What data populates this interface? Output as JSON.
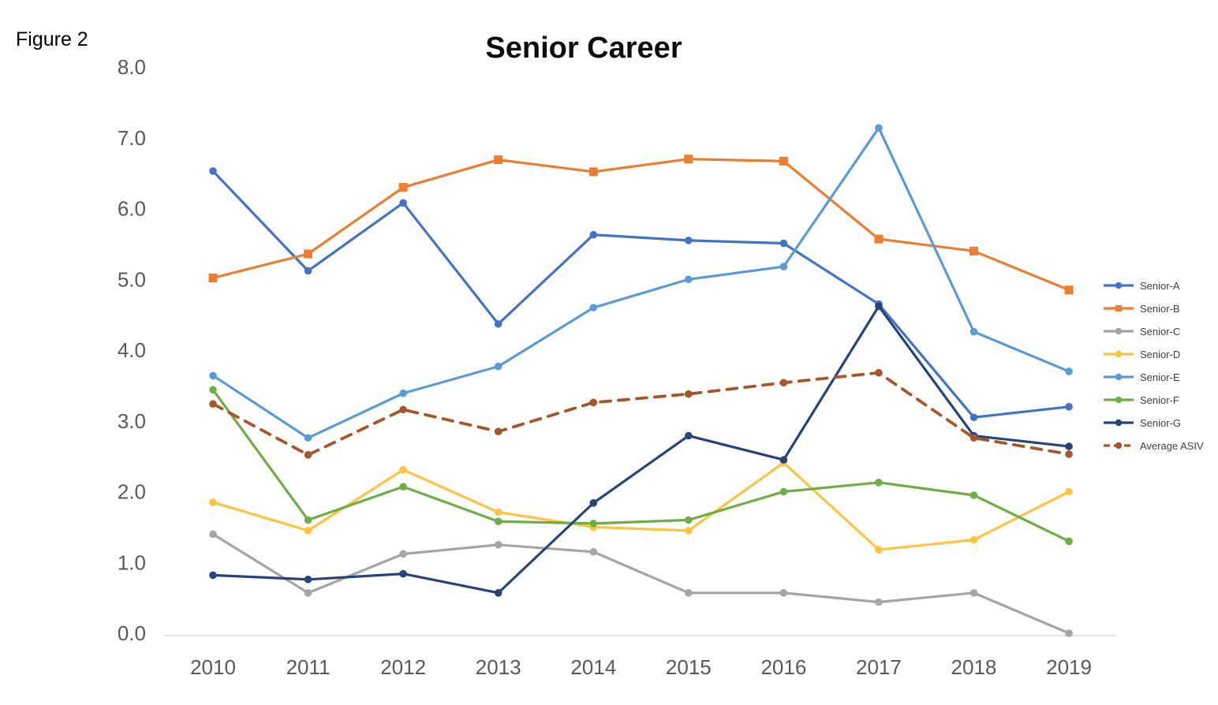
{
  "chart_data": {
    "type": "line",
    "figure_label": "Figure 2",
    "title": "Senior Career",
    "x": [
      2010,
      2011,
      2012,
      2013,
      2014,
      2015,
      2016,
      2017,
      2018,
      2019
    ],
    "xlabel": "",
    "ylabel": "",
    "ylim": [
      0.0,
      8.0
    ],
    "yticks": [
      "0.0",
      "1.0",
      "2.0",
      "3.0",
      "4.0",
      "5.0",
      "6.0",
      "7.0",
      "8.0"
    ],
    "grid": false,
    "legend_position": "right",
    "axis_line_color": "#D9D9D9",
    "tick_label_color": "#595959",
    "series": [
      {
        "name": "Senior-A",
        "color": "#4472C4",
        "marker": "circle",
        "line_style": "solid",
        "values": [
          6.53,
          5.12,
          6.08,
          4.37,
          5.63,
          5.55,
          5.51,
          4.65,
          3.05,
          3.2
        ]
      },
      {
        "name": "Senior-B",
        "color": "#ED7D31",
        "marker": "square",
        "line_style": "solid",
        "values": [
          5.02,
          5.36,
          6.3,
          6.69,
          6.52,
          6.7,
          6.67,
          5.57,
          5.4,
          4.85
        ]
      },
      {
        "name": "Senior-C",
        "color": "#A5A5A5",
        "marker": "circle",
        "line_style": "solid",
        "values": [
          1.4,
          0.57,
          1.12,
          1.25,
          1.15,
          0.57,
          0.57,
          0.44,
          0.57,
          0.0
        ]
      },
      {
        "name": "Senior-D",
        "color": "#FDC440",
        "marker": "circle",
        "line_style": "solid",
        "values": [
          1.85,
          1.45,
          2.31,
          1.71,
          1.5,
          1.45,
          2.41,
          1.18,
          1.32,
          2.0
        ]
      },
      {
        "name": "Senior-E",
        "color": "#5B9BD5",
        "marker": "circle",
        "line_style": "solid",
        "values": [
          3.64,
          2.76,
          3.39,
          3.77,
          4.6,
          5.0,
          5.18,
          7.14,
          4.26,
          3.7
        ]
      },
      {
        "name": "Senior-F",
        "color": "#70AD47",
        "marker": "circle",
        "line_style": "solid",
        "values": [
          3.44,
          1.6,
          2.07,
          1.58,
          1.55,
          1.6,
          2.0,
          2.13,
          1.95,
          1.3
        ]
      },
      {
        "name": "Senior-G",
        "color": "#264478",
        "marker": "circle",
        "line_style": "solid",
        "values": [
          0.82,
          0.76,
          0.84,
          0.57,
          1.84,
          2.79,
          2.45,
          4.62,
          2.79,
          2.64
        ]
      },
      {
        "name": "Average ASIV",
        "color": "#A5572B",
        "marker": "circle",
        "line_style": "dashed",
        "values": [
          3.24,
          2.52,
          3.16,
          2.85,
          3.26,
          3.38,
          3.54,
          3.68,
          2.76,
          2.53
        ]
      }
    ]
  }
}
